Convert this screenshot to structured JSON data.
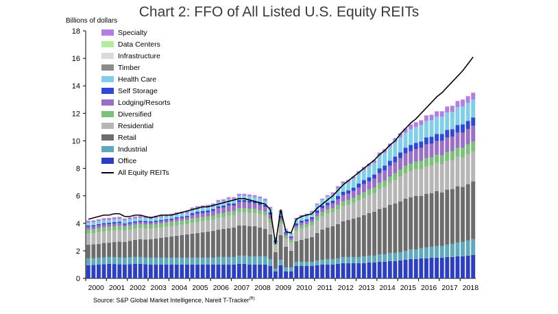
{
  "chart_data": {
    "type": "bar",
    "title": "Chart 2: FFO of All Listed U.S. Equity REITs",
    "ylabel": "Billions of dollars",
    "xlabel": "",
    "ylim": [
      0,
      18
    ],
    "yticks": [
      "0",
      "2",
      "4",
      "6",
      "8",
      "10",
      "12",
      "14",
      "16",
      "18"
    ],
    "xtick_labels": [
      "2000",
      "2001",
      "2002",
      "2003",
      "2004",
      "2005",
      "2006",
      "2007",
      "2008",
      "2009",
      "2010",
      "2011",
      "2012",
      "2013",
      "2014",
      "2015",
      "2016",
      "2017",
      "2018"
    ],
    "grid": false,
    "legend_position": "top-left",
    "source": "Source: S&P Global Market Intelligence, Nareit T-Tracker",
    "source_sup": "(R)",
    "periods": [
      "2000Q1",
      "2000Q2",
      "2000Q3",
      "2000Q4",
      "2001Q1",
      "2001Q2",
      "2001Q3",
      "2001Q4",
      "2002Q1",
      "2002Q2",
      "2002Q3",
      "2002Q4",
      "2003Q1",
      "2003Q2",
      "2003Q3",
      "2003Q4",
      "2004Q1",
      "2004Q2",
      "2004Q3",
      "2004Q4",
      "2005Q1",
      "2005Q2",
      "2005Q3",
      "2005Q4",
      "2006Q1",
      "2006Q2",
      "2006Q3",
      "2006Q4",
      "2007Q1",
      "2007Q2",
      "2007Q3",
      "2007Q4",
      "2008Q1",
      "2008Q2",
      "2008Q3",
      "2008Q4",
      "2009Q1",
      "2009Q2",
      "2009Q3",
      "2009Q4",
      "2010Q1",
      "2010Q2",
      "2010Q3",
      "2010Q4",
      "2011Q1",
      "2011Q2",
      "2011Q3",
      "2011Q4",
      "2012Q1",
      "2012Q2",
      "2012Q3",
      "2012Q4",
      "2013Q1",
      "2013Q2",
      "2013Q3",
      "2013Q4",
      "2014Q1",
      "2014Q2",
      "2014Q3",
      "2014Q4",
      "2015Q1",
      "2015Q2",
      "2015Q3",
      "2015Q4",
      "2016Q1",
      "2016Q2",
      "2016Q3",
      "2016Q4",
      "2017Q1",
      "2017Q2",
      "2017Q3",
      "2017Q4",
      "2018Q1",
      "2018Q2",
      "2018Q3"
    ],
    "series": [
      {
        "name": "Office",
        "color": "#2b3ec4",
        "values": [
          0.95,
          0.97,
          1.0,
          1.02,
          1.05,
          1.04,
          1.02,
          1.0,
          1.03,
          1.05,
          1.05,
          1.02,
          1.0,
          1.0,
          1.0,
          1.0,
          1.0,
          1.0,
          1.0,
          1.0,
          1.0,
          1.0,
          1.0,
          1.0,
          1.0,
          1.0,
          1.0,
          1.0,
          1.0,
          1.05,
          1.05,
          1.0,
          1.0,
          1.0,
          1.0,
          0.9,
          0.5,
          0.95,
          0.5,
          0.5,
          0.9,
          0.9,
          0.9,
          0.9,
          0.95,
          1.0,
          1.0,
          1.0,
          1.05,
          1.1,
          1.1,
          1.1,
          1.1,
          1.1,
          1.15,
          1.15,
          1.2,
          1.2,
          1.25,
          1.25,
          1.3,
          1.35,
          1.4,
          1.4,
          1.45,
          1.45,
          1.5,
          1.5,
          1.5,
          1.55,
          1.55,
          1.6,
          1.6,
          1.65,
          1.7
        ]
      },
      {
        "name": "Industrial",
        "color": "#5fa9be",
        "values": [
          0.5,
          0.5,
          0.5,
          0.5,
          0.5,
          0.5,
          0.5,
          0.5,
          0.5,
          0.5,
          0.5,
          0.5,
          0.5,
          0.5,
          0.5,
          0.5,
          0.5,
          0.5,
          0.5,
          0.5,
          0.5,
          0.5,
          0.5,
          0.5,
          0.5,
          0.55,
          0.55,
          0.55,
          0.55,
          0.6,
          0.6,
          0.6,
          0.6,
          0.6,
          0.6,
          0.5,
          0.2,
          0.4,
          0.3,
          0.3,
          0.3,
          0.3,
          0.3,
          0.3,
          0.35,
          0.35,
          0.4,
          0.4,
          0.4,
          0.45,
          0.45,
          0.45,
          0.45,
          0.5,
          0.5,
          0.5,
          0.55,
          0.55,
          0.6,
          0.6,
          0.6,
          0.65,
          0.7,
          0.7,
          0.75,
          0.8,
          0.8,
          0.85,
          0.85,
          0.9,
          0.95,
          1.0,
          1.05,
          1.1,
          1.15
        ]
      },
      {
        "name": "Retail",
        "color": "#6c6c6c",
        "values": [
          1.0,
          1.0,
          1.0,
          1.05,
          1.05,
          1.1,
          1.15,
          1.15,
          1.2,
          1.25,
          1.3,
          1.3,
          1.35,
          1.4,
          1.45,
          1.5,
          1.55,
          1.6,
          1.65,
          1.7,
          1.75,
          1.8,
          1.85,
          1.9,
          1.95,
          2.0,
          2.05,
          2.1,
          2.15,
          2.2,
          2.2,
          2.2,
          2.2,
          2.1,
          2.0,
          1.8,
          1.2,
          1.8,
          1.5,
          1.2,
          1.5,
          1.6,
          1.7,
          1.8,
          2.0,
          2.2,
          2.3,
          2.4,
          2.5,
          2.6,
          2.7,
          2.8,
          2.9,
          3.0,
          3.1,
          3.2,
          3.3,
          3.4,
          3.5,
          3.6,
          3.7,
          3.8,
          3.8,
          3.9,
          3.8,
          3.9,
          3.9,
          4.0,
          3.9,
          4.0,
          4.0,
          4.1,
          4.0,
          4.1,
          4.2
        ]
      },
      {
        "name": "Residential",
        "color": "#b6b6b6",
        "values": [
          0.8,
          0.8,
          0.85,
          0.85,
          0.85,
          0.85,
          0.85,
          0.8,
          0.8,
          0.8,
          0.8,
          0.8,
          0.75,
          0.75,
          0.75,
          0.75,
          0.75,
          0.75,
          0.75,
          0.75,
          0.8,
          0.8,
          0.8,
          0.8,
          0.8,
          0.85,
          0.85,
          0.9,
          0.9,
          0.95,
          0.95,
          0.95,
          0.95,
          0.95,
          0.95,
          0.85,
          0.5,
          0.8,
          0.6,
          0.6,
          0.75,
          0.8,
          0.8,
          0.85,
          0.9,
          0.95,
          1.0,
          1.0,
          1.05,
          1.1,
          1.1,
          1.15,
          1.2,
          1.25,
          1.3,
          1.35,
          1.45,
          1.5,
          1.6,
          1.7,
          1.8,
          1.85,
          1.9,
          1.95,
          1.95,
          2.0,
          2.0,
          2.05,
          2.05,
          2.1,
          2.1,
          2.15,
          2.15,
          2.2,
          2.2
        ]
      },
      {
        "name": "Diversified",
        "color": "#7cc07a",
        "values": [
          0.3,
          0.3,
          0.3,
          0.3,
          0.3,
          0.3,
          0.3,
          0.3,
          0.3,
          0.3,
          0.3,
          0.3,
          0.3,
          0.3,
          0.3,
          0.3,
          0.3,
          0.3,
          0.3,
          0.3,
          0.3,
          0.3,
          0.3,
          0.3,
          0.3,
          0.3,
          0.3,
          0.3,
          0.3,
          0.3,
          0.3,
          0.3,
          0.3,
          0.3,
          0.3,
          0.3,
          0.15,
          0.25,
          0.2,
          0.2,
          0.25,
          0.25,
          0.25,
          0.25,
          0.3,
          0.3,
          0.3,
          0.3,
          0.35,
          0.35,
          0.35,
          0.35,
          0.4,
          0.4,
          0.4,
          0.4,
          0.45,
          0.45,
          0.45,
          0.5,
          0.5,
          0.55,
          0.55,
          0.55,
          0.6,
          0.6,
          0.6,
          0.6,
          0.65,
          0.65,
          0.65,
          0.65,
          0.7,
          0.7,
          0.7
        ]
      },
      {
        "name": "Lodging/Resorts",
        "color": "#9a6fc8",
        "values": [
          0.2,
          0.2,
          0.2,
          0.2,
          0.2,
          0.2,
          0.2,
          0.15,
          0.15,
          0.15,
          0.15,
          0.15,
          0.15,
          0.15,
          0.15,
          0.15,
          0.15,
          0.2,
          0.2,
          0.2,
          0.25,
          0.3,
          0.3,
          0.3,
          0.35,
          0.4,
          0.4,
          0.45,
          0.4,
          0.45,
          0.45,
          0.45,
          0.4,
          0.4,
          0.35,
          0.3,
          0.1,
          0.2,
          0.15,
          0.15,
          0.15,
          0.2,
          0.2,
          0.2,
          0.25,
          0.3,
          0.3,
          0.35,
          0.4,
          0.45,
          0.45,
          0.5,
          0.55,
          0.6,
          0.6,
          0.65,
          0.7,
          0.75,
          0.8,
          0.8,
          0.85,
          0.9,
          0.9,
          0.9,
          0.95,
          1.0,
          1.0,
          1.0,
          1.05,
          1.05,
          1.05,
          1.1,
          1.1,
          1.1,
          1.15
        ]
      },
      {
        "name": "Self Storage",
        "color": "#3048d8",
        "values": [
          0.1,
          0.1,
          0.1,
          0.1,
          0.1,
          0.1,
          0.1,
          0.1,
          0.1,
          0.1,
          0.1,
          0.1,
          0.1,
          0.1,
          0.1,
          0.1,
          0.1,
          0.1,
          0.1,
          0.1,
          0.15,
          0.15,
          0.15,
          0.15,
          0.15,
          0.15,
          0.15,
          0.15,
          0.15,
          0.15,
          0.15,
          0.15,
          0.15,
          0.15,
          0.15,
          0.15,
          0.1,
          0.15,
          0.1,
          0.1,
          0.15,
          0.15,
          0.15,
          0.15,
          0.2,
          0.2,
          0.2,
          0.2,
          0.25,
          0.25,
          0.25,
          0.25,
          0.3,
          0.3,
          0.3,
          0.3,
          0.35,
          0.35,
          0.35,
          0.4,
          0.4,
          0.4,
          0.45,
          0.45,
          0.45,
          0.5,
          0.5,
          0.5,
          0.5,
          0.55,
          0.55,
          0.55,
          0.6,
          0.6,
          0.6
        ]
      },
      {
        "name": "Health Care",
        "color": "#7fcfe8",
        "values": [
          0.2,
          0.2,
          0.2,
          0.2,
          0.2,
          0.2,
          0.2,
          0.2,
          0.2,
          0.2,
          0.2,
          0.2,
          0.2,
          0.2,
          0.2,
          0.2,
          0.2,
          0.2,
          0.2,
          0.2,
          0.25,
          0.25,
          0.25,
          0.25,
          0.25,
          0.3,
          0.3,
          0.3,
          0.3,
          0.3,
          0.3,
          0.3,
          0.3,
          0.3,
          0.3,
          0.3,
          0.2,
          0.3,
          0.2,
          0.2,
          0.3,
          0.3,
          0.3,
          0.35,
          0.4,
          0.4,
          0.45,
          0.5,
          0.55,
          0.6,
          0.6,
          0.65,
          0.7,
          0.75,
          0.8,
          0.85,
          0.9,
          0.95,
          1.0,
          1.05,
          1.1,
          1.1,
          1.15,
          1.15,
          1.2,
          1.2,
          1.2,
          1.25,
          1.25,
          1.25,
          1.25,
          1.3,
          1.3,
          1.3,
          1.3
        ]
      },
      {
        "name": "Timber",
        "color": "#8b8b8b",
        "values": [
          0.0,
          0.0,
          0.0,
          0.0,
          0.0,
          0.0,
          0.0,
          0.0,
          0.0,
          0.0,
          0.0,
          0.0,
          0.0,
          0.0,
          0.0,
          0.0,
          0.0,
          0.0,
          0.0,
          0.0,
          0.0,
          0.0,
          0.0,
          0.0,
          0.0,
          0.0,
          0.0,
          0.0,
          0.0,
          0.0,
          0.0,
          0.0,
          0.0,
          0.0,
          0.0,
          0.0,
          0.0,
          0.0,
          0.0,
          0.0,
          0.0,
          0.0,
          0.0,
          0.0,
          0.0,
          0.0,
          0.0,
          0.0,
          0.0,
          0.0,
          0.0,
          0.0,
          0.0,
          0.0,
          0.0,
          0.0,
          0.0,
          0.0,
          0.0,
          0.0,
          0.0,
          0.0,
          0.0,
          0.0,
          0.0,
          0.0,
          0.0,
          0.0,
          0.0,
          0.0,
          0.0,
          0.0,
          0.0,
          0.0,
          0.0
        ]
      },
      {
        "name": "Infrastructure",
        "color": "#dadada",
        "values": [
          0.0,
          0.0,
          0.0,
          0.0,
          0.0,
          0.0,
          0.0,
          0.0,
          0.0,
          0.0,
          0.0,
          0.0,
          0.0,
          0.0,
          0.0,
          0.0,
          0.0,
          0.0,
          0.0,
          0.0,
          0.0,
          0.0,
          0.0,
          0.0,
          0.0,
          0.0,
          0.0,
          0.0,
          0.0,
          0.0,
          0.0,
          0.0,
          0.0,
          0.0,
          0.0,
          0.0,
          0.0,
          0.0,
          0.0,
          0.0,
          0.0,
          0.0,
          0.0,
          0.0,
          0.0,
          0.0,
          0.0,
          0.0,
          0.0,
          0.0,
          0.0,
          0.0,
          0.0,
          0.0,
          0.0,
          0.0,
          0.0,
          0.0,
          0.0,
          0.0,
          0.0,
          0.0,
          0.0,
          0.0,
          0.0,
          0.0,
          0.0,
          0.0,
          0.0,
          0.0,
          0.0,
          0.0,
          0.0,
          0.0,
          0.0
        ]
      },
      {
        "name": "Data Centers",
        "color": "#b3ec9c",
        "values": [
          0.0,
          0.0,
          0.0,
          0.0,
          0.0,
          0.0,
          0.0,
          0.0,
          0.0,
          0.0,
          0.0,
          0.0,
          0.0,
          0.0,
          0.0,
          0.0,
          0.0,
          0.0,
          0.0,
          0.0,
          0.0,
          0.0,
          0.0,
          0.0,
          0.0,
          0.0,
          0.0,
          0.0,
          0.0,
          0.0,
          0.0,
          0.0,
          0.0,
          0.0,
          0.0,
          0.0,
          0.0,
          0.0,
          0.0,
          0.0,
          0.0,
          0.0,
          0.0,
          0.0,
          0.0,
          0.0,
          0.0,
          0.0,
          0.0,
          0.0,
          0.0,
          0.0,
          0.0,
          0.0,
          0.0,
          0.0,
          0.0,
          0.0,
          0.0,
          0.0,
          0.0,
          0.0,
          0.0,
          0.0,
          0.0,
          0.0,
          0.0,
          0.0,
          0.0,
          0.0,
          0.0,
          0.0,
          0.0,
          0.0,
          0.0
        ]
      },
      {
        "name": "Specialty",
        "color": "#b27ee6",
        "values": [
          0.15,
          0.15,
          0.15,
          0.15,
          0.15,
          0.15,
          0.15,
          0.15,
          0.15,
          0.15,
          0.15,
          0.15,
          0.15,
          0.15,
          0.15,
          0.15,
          0.15,
          0.15,
          0.15,
          0.15,
          0.15,
          0.15,
          0.15,
          0.15,
          0.15,
          0.15,
          0.15,
          0.15,
          0.15,
          0.15,
          0.15,
          0.15,
          0.15,
          0.15,
          0.15,
          0.1,
          0.05,
          0.1,
          0.05,
          0.05,
          0.1,
          0.1,
          0.1,
          0.1,
          0.1,
          0.1,
          0.1,
          0.1,
          0.15,
          0.15,
          0.15,
          0.15,
          0.2,
          0.2,
          0.2,
          0.2,
          0.25,
          0.25,
          0.25,
          0.3,
          0.3,
          0.3,
          0.35,
          0.35,
          0.35,
          0.4,
          0.4,
          0.4,
          0.4,
          0.45,
          0.45,
          0.45,
          0.5,
          0.5,
          0.5
        ]
      }
    ],
    "total_series": {
      "name": "All Equity REITs",
      "color": "#000000",
      "values": [
        4.3,
        4.4,
        4.5,
        4.6,
        4.6,
        4.7,
        4.7,
        4.5,
        4.5,
        4.6,
        4.6,
        4.5,
        4.4,
        4.5,
        4.6,
        4.6,
        4.6,
        4.7,
        4.8,
        4.9,
        5.0,
        5.1,
        5.2,
        5.2,
        5.3,
        5.4,
        5.5,
        5.6,
        5.7,
        5.8,
        5.8,
        5.7,
        5.6,
        5.5,
        5.4,
        5.0,
        2.5,
        5.0,
        3.4,
        3.3,
        4.3,
        4.5,
        4.6,
        4.7,
        5.1,
        5.4,
        5.7,
        6.0,
        6.4,
        6.8,
        7.1,
        7.4,
        7.7,
        8.0,
        8.3,
        8.6,
        9.0,
        9.3,
        9.7,
        10.0,
        10.5,
        10.9,
        11.3,
        11.6,
        12.0,
        12.4,
        12.8,
        13.2,
        13.5,
        13.9,
        14.3,
        14.7,
        15.1,
        15.6,
        16.1
      ]
    }
  }
}
